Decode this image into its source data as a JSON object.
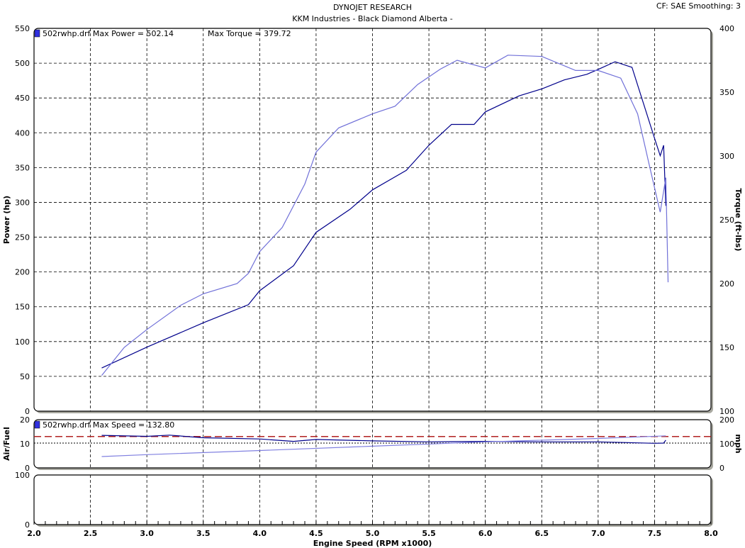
{
  "header": {
    "title": "DYNOJET RESEARCH",
    "subtitle": "KKM Industries - Black Diamond Alberta -",
    "info": "CF: SAE  Smoothing: 3"
  },
  "chart_data": [
    {
      "type": "line",
      "legend": {
        "label": "502rwhp.drf Max Power = 502.14",
        "label2": "Max Torque = 379.72",
        "placement": "top-left"
      },
      "xlabel": "Engine Speed (RPM x1000)",
      "xlim": [
        2.0,
        8.0
      ],
      "x_ticks": [
        "2.0",
        "2.5",
        "3.0",
        "3.5",
        "4.0",
        "4.5",
        "5.0",
        "5.5",
        "6.0",
        "6.5",
        "7.0",
        "7.5",
        "8.0"
      ],
      "ylabel": "Power (hp)",
      "ylim": [
        0,
        550
      ],
      "y_ticks": [
        "0",
        "50",
        "100",
        "150",
        "200",
        "250",
        "300",
        "350",
        "400",
        "450",
        "500",
        "550"
      ],
      "y2label": "Torque (ft-lbs)",
      "y2lim": [
        100,
        400
      ],
      "y2_ticks": [
        "100",
        "150",
        "200",
        "250",
        "300",
        "350",
        "400"
      ],
      "grid": true,
      "series": [
        {
          "name": "Power",
          "axis": "left",
          "color": "#00008b",
          "x": [
            2.6,
            3.0,
            3.5,
            3.9,
            4.0,
            4.3,
            4.5,
            4.8,
            5.0,
            5.3,
            5.5,
            5.7,
            5.9,
            6.0,
            6.3,
            6.5,
            6.7,
            6.9,
            7.0,
            7.15,
            7.3,
            7.4,
            7.5,
            7.55,
            7.58,
            7.6
          ],
          "y": [
            62,
            92,
            127,
            153,
            173,
            209,
            257,
            290,
            318,
            346,
            382,
            412,
            412,
            430,
            453,
            463,
            476,
            484,
            491,
            502,
            494,
            443,
            392,
            367,
            382,
            295
          ]
        },
        {
          "name": "Torque",
          "axis": "right",
          "color": "#7070d8",
          "x": [
            2.6,
            2.8,
            3.0,
            3.3,
            3.5,
            3.8,
            3.9,
            4.0,
            4.2,
            4.4,
            4.5,
            4.7,
            5.0,
            5.2,
            5.4,
            5.6,
            5.75,
            6.0,
            6.2,
            6.5,
            6.8,
            7.0,
            7.2,
            7.35,
            7.45,
            7.55,
            7.6,
            7.62
          ],
          "y": [
            128,
            150,
            164,
            183,
            192,
            200,
            208,
            225,
            244,
            278,
            303,
            322,
            333,
            339,
            356,
            368,
            375,
            369,
            379,
            378,
            367,
            367,
            361,
            333,
            294,
            256,
            283,
            201
          ]
        }
      ]
    },
    {
      "type": "line",
      "legend": {
        "label": "502rwhp.drf Max Speed = 132.80"
      },
      "xlim": [
        2.0,
        8.0
      ],
      "ylabel": "Air/Fuel",
      "ylim": [
        0,
        20
      ],
      "y_ticks": [
        "0",
        "10",
        "20"
      ],
      "y2label": "mph",
      "y2lim": [
        0,
        200
      ],
      "y2_ticks": [
        "0",
        "100",
        "200"
      ],
      "reference_lines": [
        {
          "axis": "left",
          "value": 13,
          "color": "#b22222",
          "style": "dashed"
        },
        {
          "axis": "left",
          "value": 10.3,
          "color": "#000000",
          "style": "dotted"
        }
      ],
      "series": [
        {
          "name": "Air/Fuel",
          "axis": "left",
          "color": "#00008b",
          "x": [
            2.6,
            3.0,
            3.2,
            3.5,
            4.0,
            4.3,
            4.5,
            5.0,
            5.5,
            6.0,
            6.5,
            7.0,
            7.5,
            7.58,
            7.6
          ],
          "y": [
            13.5,
            13.1,
            13.6,
            12.5,
            12,
            11,
            11.8,
            11.2,
            10.8,
            11,
            10.8,
            10.8,
            10.2,
            10.3,
            11.5
          ]
        },
        {
          "name": "Speed",
          "axis": "right",
          "color": "#8080e0",
          "x": [
            2.6,
            3.0,
            4.0,
            5.0,
            6.0,
            7.0,
            7.6
          ],
          "y": [
            47,
            55,
            72,
            90,
            108,
            122,
            132.8
          ]
        }
      ]
    },
    {
      "type": "line",
      "xlim": [
        2.0,
        8.0
      ],
      "ylim": [
        0,
        100
      ],
      "y_ticks": [
        "0",
        "100"
      ],
      "series": []
    }
  ]
}
